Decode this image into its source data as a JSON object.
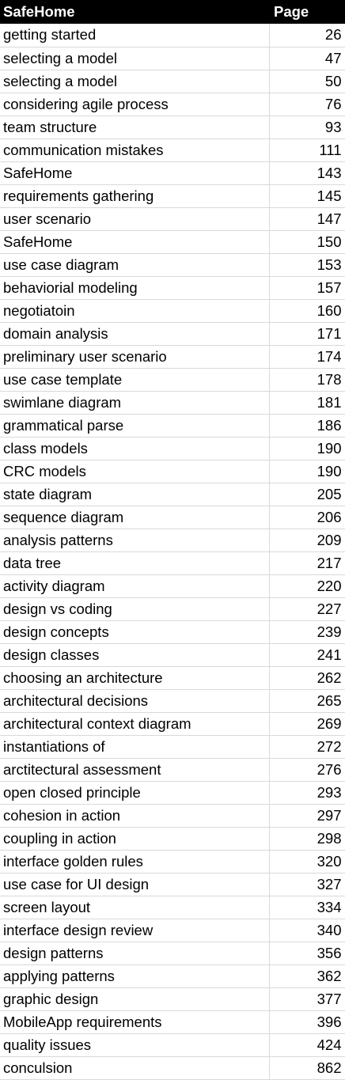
{
  "table": {
    "headers": [
      "SafeHome",
      "Page"
    ],
    "rows": [
      [
        "getting started",
        "26"
      ],
      [
        "selecting a model",
        "47"
      ],
      [
        "selecting a model",
        "50"
      ],
      [
        "considering agile process",
        "76"
      ],
      [
        "team structure",
        "93"
      ],
      [
        "communication mistakes",
        "111"
      ],
      [
        "SafeHome",
        "143"
      ],
      [
        "requirements gathering",
        "145"
      ],
      [
        "user scenario",
        "147"
      ],
      [
        "SafeHome",
        "150"
      ],
      [
        "use case diagram",
        "153"
      ],
      [
        "behaviorial modeling",
        "157"
      ],
      [
        "negotiatoin",
        "160"
      ],
      [
        "domain analysis",
        "171"
      ],
      [
        "preliminary user scenario",
        "174"
      ],
      [
        "use case template",
        "178"
      ],
      [
        "swimlane diagram",
        "181"
      ],
      [
        "grammatical parse",
        "186"
      ],
      [
        "class models",
        "190"
      ],
      [
        "CRC models",
        "190"
      ],
      [
        "state diagram",
        "205"
      ],
      [
        "sequence diagram",
        "206"
      ],
      [
        "analysis patterns",
        "209"
      ],
      [
        "data tree",
        "217"
      ],
      [
        "activity diagram",
        "220"
      ],
      [
        "design vs coding",
        "227"
      ],
      [
        "design concepts",
        "239"
      ],
      [
        "design classes",
        "241"
      ],
      [
        "choosing an architecture",
        "262"
      ],
      [
        "architectural decisions",
        "265"
      ],
      [
        "architectural context diagram",
        "269"
      ],
      [
        "instantiations of",
        "272"
      ],
      [
        "arctitectural assessment",
        "276"
      ],
      [
        "open closed principle",
        "293"
      ],
      [
        "cohesion in action",
        "297"
      ],
      [
        "coupling in action",
        "298"
      ],
      [
        "interface golden rules",
        "320"
      ],
      [
        "use case for UI design",
        "327"
      ],
      [
        "screen layout",
        "334"
      ],
      [
        "interface design review",
        "340"
      ],
      [
        "design patterns",
        "356"
      ],
      [
        "applying patterns",
        "362"
      ],
      [
        "graphic design",
        "377"
      ],
      [
        "MobileApp requirements",
        "396"
      ],
      [
        "quality issues",
        "424"
      ],
      [
        "conculsion",
        "862"
      ]
    ]
  },
  "colors": {
    "header_bg": "#000000",
    "header_text": "#ffffff",
    "gridline": "#d9d9d9",
    "cell_text": "#000000"
  }
}
